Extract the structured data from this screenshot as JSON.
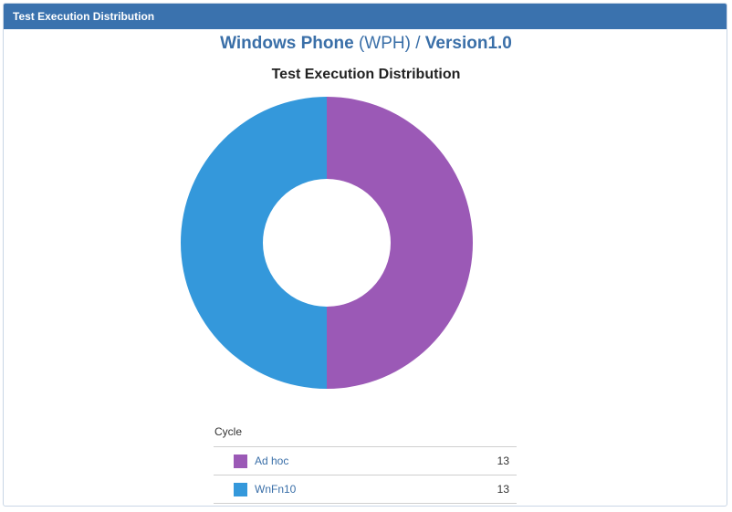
{
  "panel": {
    "title": "Test Execution Distribution"
  },
  "project": {
    "name": "Windows Phone",
    "key": "(WPH)",
    "separator": "/",
    "version": "Version1.0"
  },
  "legend": {
    "title": "Cycle"
  },
  "chart_data": {
    "type": "pie",
    "donut": true,
    "title": "Test Execution Distribution",
    "categories": [
      "Ad hoc",
      "WnFn10"
    ],
    "values": [
      13,
      13
    ],
    "colors": [
      "#9b59b6",
      "#3498db"
    ],
    "legend_placement": "bottom"
  }
}
